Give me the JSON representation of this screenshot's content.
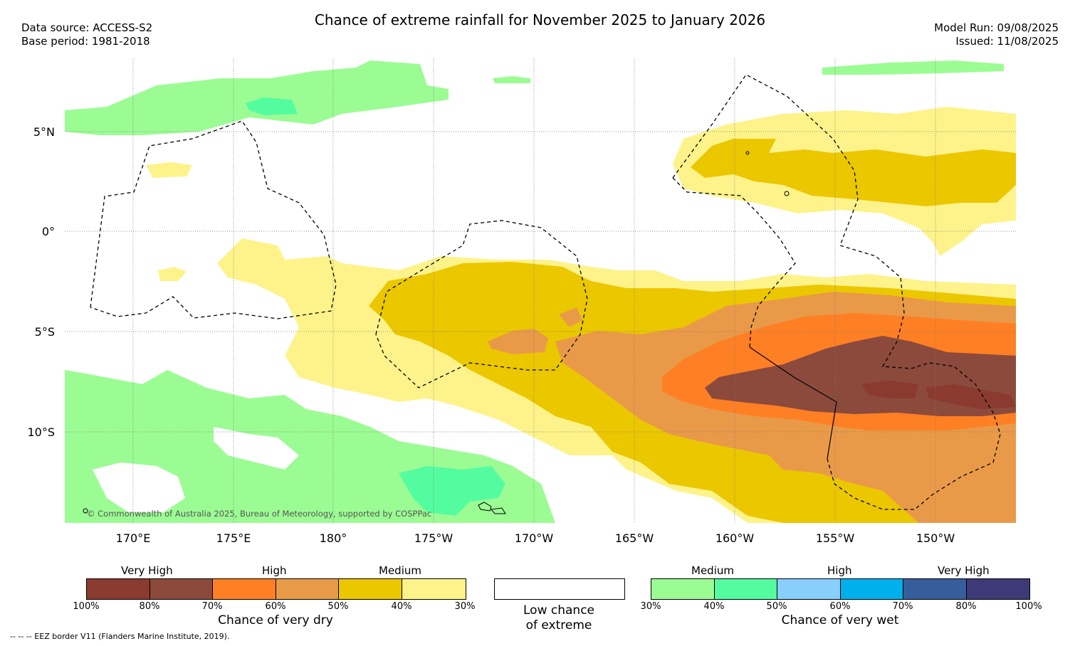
{
  "title": "Chance of extreme rainfall for November 2025 to January 2026",
  "meta": {
    "data_source": "Data source: ACCESS-S2",
    "base_period": "Base period: 1981-2018",
    "model_run": "Model Run: 09/08/2025",
    "issued": "Issued: 11/08/2025"
  },
  "map": {
    "lat_labels": [
      "5°N",
      "0°",
      "5°S",
      "10°S"
    ],
    "lon_labels": [
      "170°E",
      "175°E",
      "180°",
      "175°W",
      "170°W",
      "165°W",
      "160°W",
      "155°W",
      "150°W"
    ],
    "copyright": "© Commonwealth of Australia 2025, Bureau of Meteorology, supported by COSPPac"
  },
  "legend_dry": {
    "categories": [
      "Very High",
      "High",
      "Medium"
    ],
    "colors": [
      "#8b3a30",
      "#8b4a3c",
      "#ff7f24",
      "#e99a48",
      "#ebc700",
      "#fdf38a"
    ],
    "ticks": [
      "100%",
      "80%",
      "70%",
      "60%",
      "50%",
      "40%",
      "30%"
    ],
    "caption": "Chance of very dry"
  },
  "legend_low": {
    "color": "#ffffff",
    "caption_line1": "Low chance",
    "caption_line2": "of extreme"
  },
  "legend_wet": {
    "categories": [
      "Medium",
      "High",
      "Very High"
    ],
    "colors": [
      "#9cfc94",
      "#54fca0",
      "#88cffc",
      "#00b0ec",
      "#365e9c",
      "#3e3a78"
    ],
    "ticks": [
      "30%",
      "40%",
      "50%",
      "60%",
      "70%",
      "80%",
      "100%"
    ],
    "caption": "Chance of very wet"
  },
  "footer": "--  --  -- EEZ border V11 (Flanders Marine Institute, 2019)."
}
